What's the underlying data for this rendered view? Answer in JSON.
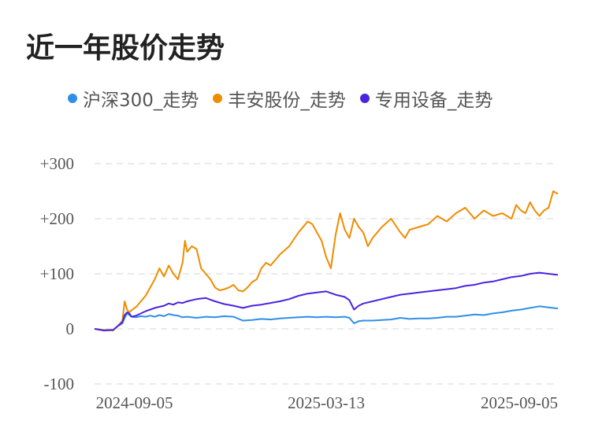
{
  "title": "近一年股价走势",
  "legend": [
    {
      "label": "沪深300_走势",
      "color": "#2f8fe8"
    },
    {
      "label": "丰安股份_走势",
      "color": "#ef8c00"
    },
    {
      "label": "专用设备_走势",
      "color": "#4a24e0"
    }
  ],
  "chart_data": {
    "type": "line",
    "ylim": [
      -100,
      300
    ],
    "yticks": [
      300,
      200,
      100,
      0,
      -100
    ],
    "ytick_labels": [
      "+300",
      "+200",
      "+100",
      "0",
      "-100"
    ],
    "xlim": [
      0,
      100
    ],
    "xtick_labels": [
      "2024-09-05",
      "2025-03-13",
      "2025-09-05"
    ],
    "xtick_positions": [
      8.6,
      50,
      100
    ],
    "grid": true,
    "legend_position": "top",
    "series": [
      {
        "name": "沪深300_走势",
        "color": "#2f8fe8",
        "x": [
          0,
          2,
          4,
          5,
          6,
          6.5,
          7,
          7.5,
          8,
          9,
          10,
          11,
          12,
          13,
          14,
          15,
          16,
          17,
          18,
          19,
          20,
          22,
          24,
          26,
          28,
          30,
          32,
          34,
          36,
          38,
          40,
          42,
          44,
          46,
          48,
          50,
          52,
          54,
          55,
          56,
          57,
          58,
          60,
          62,
          64,
          66,
          68,
          70,
          72,
          74,
          76,
          78,
          80,
          82,
          84,
          86,
          88,
          90,
          92,
          94,
          96,
          98,
          100
        ],
        "values": [
          0,
          -2,
          -2,
          5,
          10,
          20,
          28,
          25,
          22,
          21,
          23,
          22,
          24,
          22,
          25,
          23,
          27,
          25,
          24,
          21,
          22,
          20,
          22,
          21,
          23,
          22,
          15,
          16,
          18,
          17,
          19,
          20,
          21,
          22,
          21,
          22,
          21,
          22,
          20,
          10,
          14,
          15,
          15,
          16,
          17,
          20,
          18,
          19,
          19,
          20,
          22,
          22,
          24,
          26,
          25,
          28,
          30,
          33,
          35,
          38,
          41,
          39,
          37
        ]
      },
      {
        "name": "丰安股份_走势",
        "color": "#ef8c00",
        "x": [
          0,
          2,
          4,
          5,
          6,
          6.5,
          7,
          7.5,
          8,
          9,
          10,
          11,
          12,
          13,
          14,
          15,
          16,
          17,
          18,
          19,
          19.5,
          20,
          21,
          22,
          23,
          24,
          25,
          26,
          27,
          28,
          29,
          30,
          31,
          32,
          33,
          34,
          35,
          36,
          37,
          38,
          40,
          42,
          44,
          46,
          47,
          48,
          49,
          50,
          51,
          52,
          53,
          54,
          55,
          56,
          57,
          58,
          59,
          60,
          62,
          64,
          66,
          67,
          68,
          70,
          72,
          74,
          76,
          78,
          80,
          82,
          84,
          86,
          88,
          90,
          91,
          92,
          93,
          94,
          95,
          96,
          97,
          98,
          99,
          100
        ],
        "values": [
          0,
          -2,
          -3,
          5,
          15,
          50,
          35,
          30,
          34,
          40,
          50,
          60,
          75,
          90,
          110,
          95,
          115,
          100,
          90,
          120,
          160,
          140,
          150,
          145,
          110,
          100,
          90,
          75,
          70,
          72,
          75,
          80,
          70,
          68,
          75,
          85,
          90,
          110,
          120,
          115,
          135,
          150,
          175,
          195,
          190,
          175,
          160,
          130,
          110,
          170,
          210,
          180,
          165,
          200,
          185,
          175,
          150,
          165,
          185,
          200,
          175,
          165,
          180,
          185,
          190,
          205,
          195,
          210,
          220,
          200,
          215,
          205,
          210,
          200,
          225,
          215,
          210,
          230,
          215,
          205,
          215,
          220,
          250,
          245
        ]
      },
      {
        "name": "专用设备_走势",
        "color": "#4a24e0",
        "x": [
          0,
          2,
          4,
          5,
          6,
          6.5,
          7,
          7.5,
          8,
          9,
          10,
          11,
          12,
          13,
          14,
          15,
          16,
          17,
          18,
          19,
          20,
          22,
          24,
          26,
          28,
          30,
          32,
          34,
          36,
          38,
          40,
          42,
          44,
          46,
          48,
          50,
          52,
          54,
          55,
          56,
          57,
          58,
          60,
          62,
          64,
          66,
          68,
          70,
          72,
          74,
          76,
          78,
          80,
          82,
          84,
          86,
          88,
          90,
          92,
          94,
          96,
          98,
          100
        ],
        "values": [
          0,
          -3,
          -2,
          5,
          12,
          25,
          30,
          28,
          22,
          24,
          28,
          32,
          35,
          38,
          40,
          42,
          46,
          44,
          48,
          47,
          50,
          54,
          56,
          50,
          45,
          42,
          38,
          42,
          44,
          47,
          50,
          54,
          60,
          64,
          66,
          68,
          62,
          58,
          52,
          35,
          42,
          46,
          50,
          54,
          58,
          62,
          64,
          66,
          68,
          70,
          72,
          74,
          78,
          80,
          84,
          86,
          90,
          94,
          96,
          100,
          102,
          100,
          98
        ]
      }
    ]
  }
}
